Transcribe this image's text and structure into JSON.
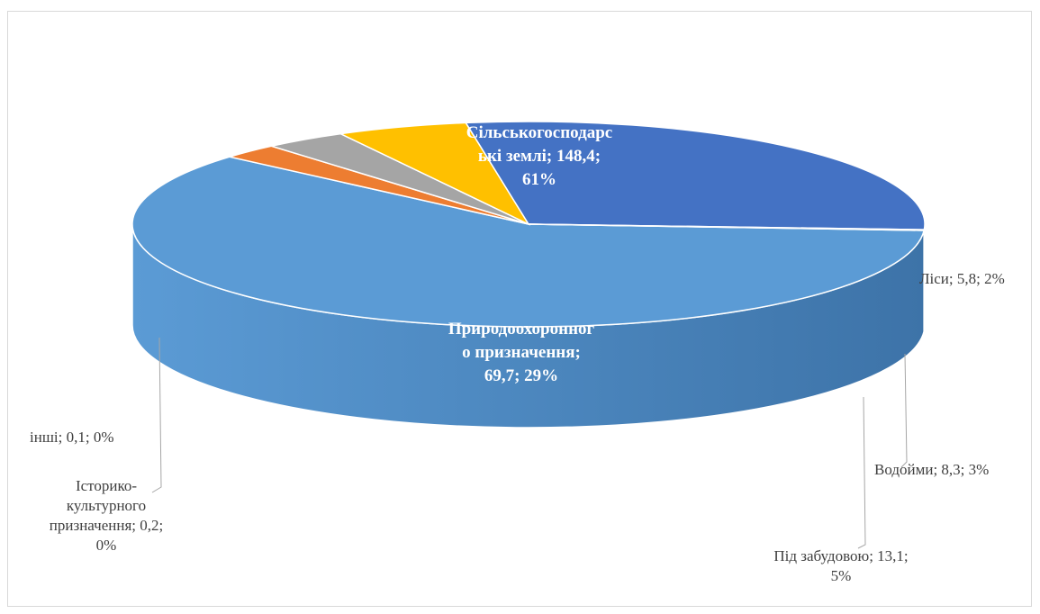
{
  "chart_data": {
    "type": "pie",
    "style": "3d",
    "slices": [
      {
        "name": "Сільськогосподарські землі",
        "value": 148.4,
        "percent": 61,
        "color": "#5b9bd5"
      },
      {
        "name": "Ліси",
        "value": 5.8,
        "percent": 2,
        "color": "#ed7d31"
      },
      {
        "name": "Водойми",
        "value": 8.3,
        "percent": 3,
        "color": "#a5a5a5"
      },
      {
        "name": "Під забудовою",
        "value": 13.1,
        "percent": 5,
        "color": "#ffc000"
      },
      {
        "name": "Природоохоронного призначення",
        "value": 69.7,
        "percent": 29,
        "color": "#4472c4"
      },
      {
        "name": "Історико-культурного призначення",
        "value": 0.2,
        "percent": 0,
        "color": "#70ad47"
      },
      {
        "name": "інші",
        "value": 0.1,
        "percent": 0,
        "color": "#264478"
      }
    ],
    "labels": {
      "agri": [
        "Сільськогосподарс",
        "ькі землі; 148,4;",
        "61%"
      ],
      "nature": [
        "Природоохоронног",
        "о призначення;",
        "69,7; 29%"
      ],
      "forest": "Ліси; 5,8; 2%",
      "water": "Водойми; 8,3; 3%",
      "built": [
        "Під забудовою; 13,1;",
        "5%"
      ],
      "historic": [
        "Історико-",
        "культурного",
        "призначення; 0,2;",
        "0%"
      ],
      "other": "інші; 0,1; 0%"
    }
  }
}
